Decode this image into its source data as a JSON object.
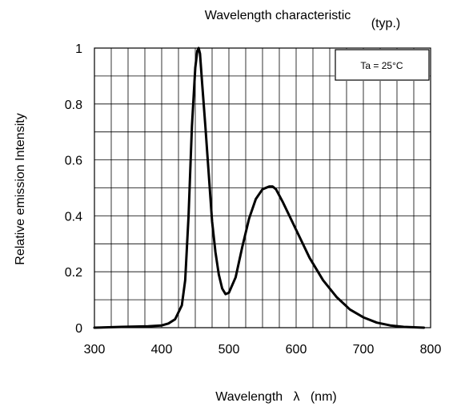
{
  "chart_data": {
    "type": "line",
    "title": "Wavelength characteristic",
    "subtitle": "(typ.)",
    "xlabel": "Wavelength   λ   (nm)",
    "ylabel": "Relative emission Intensity",
    "xlim": [
      300,
      800
    ],
    "ylim": [
      0,
      1
    ],
    "x_ticks": [
      300,
      400,
      500,
      600,
      700,
      800
    ],
    "x_tick_labels": [
      "300",
      "400",
      "500",
      "600",
      "700",
      "800"
    ],
    "y_ticks": [
      0,
      0.2,
      0.4,
      0.6,
      0.8,
      1
    ],
    "y_tick_labels": [
      "0",
      "0.2",
      "0.4",
      "0.6",
      "0.8",
      "1"
    ],
    "grid": true,
    "annotation": "Ta = 25°C",
    "annotation_position": "top-right",
    "line_color": "#000000",
    "series": [
      {
        "x": [
          300,
          340,
          380,
          400,
          410,
          420,
          430,
          435,
          440,
          445,
          450,
          453,
          455,
          457,
          460,
          465,
          470,
          475,
          480,
          485,
          490,
          495,
          500,
          510,
          520,
          530,
          540,
          550,
          560,
          565,
          570,
          580,
          590,
          600,
          620,
          640,
          660,
          680,
          700,
          720,
          740,
          760,
          790
        ],
        "y": [
          0,
          0.003,
          0.005,
          0.008,
          0.015,
          0.03,
          0.08,
          0.17,
          0.4,
          0.72,
          0.93,
          0.99,
          1.0,
          0.98,
          0.88,
          0.72,
          0.55,
          0.38,
          0.27,
          0.19,
          0.14,
          0.12,
          0.125,
          0.18,
          0.29,
          0.39,
          0.46,
          0.495,
          0.505,
          0.505,
          0.495,
          0.45,
          0.4,
          0.35,
          0.25,
          0.17,
          0.11,
          0.065,
          0.037,
          0.018,
          0.008,
          0.003,
          0.0
        ]
      }
    ]
  }
}
